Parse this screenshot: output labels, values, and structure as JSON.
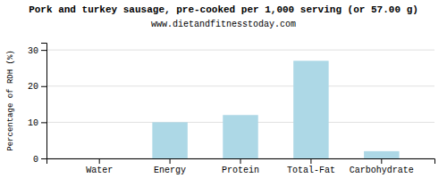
{
  "chart_data": {
    "type": "bar",
    "title": "Pork and turkey sausage, pre-cooked per 1,000 serving (or 57.00 g)",
    "subtitle": "www.dietandfitnesstoday.com",
    "categories": [
      "Water",
      "Energy",
      "Protein",
      "Total-Fat",
      "Carbohydrate"
    ],
    "values": [
      0,
      10,
      12,
      27,
      2
    ],
    "color": "#add8e6",
    "ylabel": "Percentage of RDH (%)",
    "ylim": [
      0,
      32
    ],
    "yticks": [
      0,
      10,
      20,
      30
    ],
    "grid": true
  }
}
